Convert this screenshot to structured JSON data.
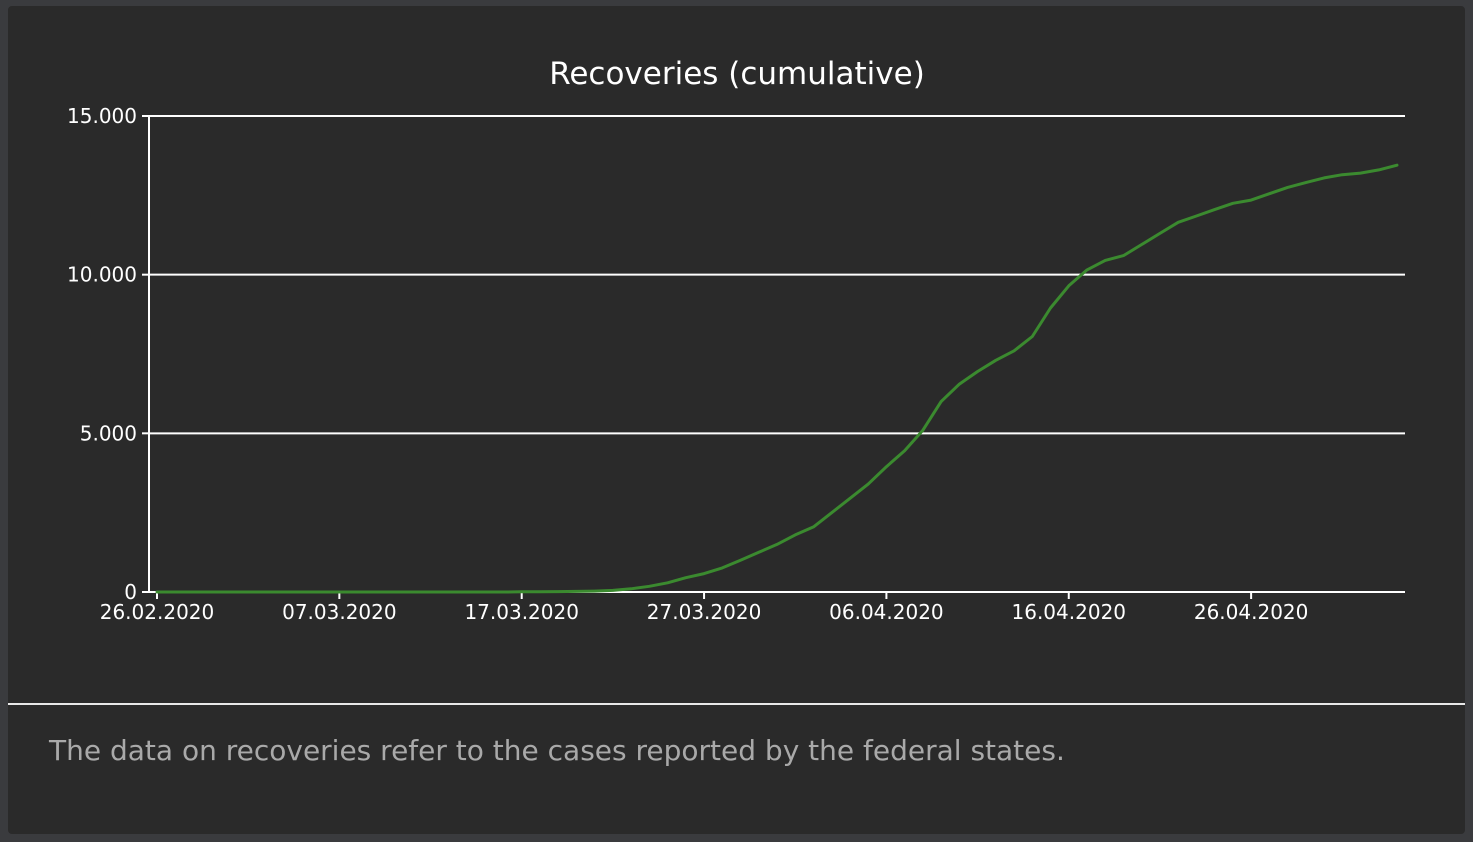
{
  "colors": {
    "page_bg": "#3a3b3e",
    "card_bg": "#2a2a2a",
    "axis": "#ffffff",
    "series_line": "#3b8a2f",
    "footnote_text": "#a9a9a9"
  },
  "footnote": "The data on recoveries refer to the cases reported by the federal states.",
  "chart_data": {
    "type": "line",
    "title": "Recoveries (cumulative)",
    "xlabel": "",
    "ylabel": "",
    "ylim": [
      0,
      15000
    ],
    "grid": true,
    "legend": "none",
    "yticks": [
      {
        "value": 0,
        "label": "0"
      },
      {
        "value": 5000,
        "label": "5.000"
      },
      {
        "value": 10000,
        "label": "10.000"
      },
      {
        "value": 15000,
        "label": "15.000"
      }
    ],
    "xlim": [
      0,
      68
    ],
    "xticks": [
      {
        "value": 0,
        "label": "26.02.2020"
      },
      {
        "value": 10,
        "label": "07.03.2020"
      },
      {
        "value": 20,
        "label": "17.03.2020"
      },
      {
        "value": 30,
        "label": "27.03.2020"
      },
      {
        "value": 40,
        "label": "06.04.2020"
      },
      {
        "value": 50,
        "label": "16.04.2020"
      },
      {
        "value": 60,
        "label": "26.04.2020"
      }
    ],
    "series": [
      {
        "name": "Recoveries",
        "x": [
          0,
          1,
          2,
          3,
          4,
          5,
          6,
          7,
          8,
          9,
          10,
          11,
          12,
          13,
          14,
          15,
          16,
          17,
          18,
          19,
          20,
          21,
          22,
          23,
          24,
          25,
          26,
          27,
          28,
          29,
          30,
          31,
          32,
          33,
          34,
          35,
          36,
          37,
          38,
          39,
          40,
          41,
          42,
          43,
          44,
          45,
          46,
          47,
          48,
          49,
          50,
          51,
          52,
          53,
          54,
          55,
          56,
          57,
          58,
          59,
          60,
          61,
          62,
          63,
          64,
          65,
          66,
          67,
          68
        ],
        "values": [
          0,
          0,
          0,
          0,
          0,
          0,
          0,
          0,
          0,
          0,
          0,
          0,
          0,
          0,
          0,
          0,
          0,
          0,
          0,
          0,
          5,
          8,
          12,
          18,
          28,
          50,
          100,
          180,
          290,
          450,
          580,
          760,
          1000,
          1250,
          1500,
          1800,
          2050,
          2500,
          2950,
          3400,
          3950,
          4450,
          5100,
          6000,
          6550,
          6950,
          7300,
          7600,
          8050,
          8950,
          9650,
          10150,
          10450,
          10600,
          10950,
          11300,
          11650,
          11850,
          12050,
          12250,
          12350,
          12550,
          12750,
          12900,
          13050,
          13150,
          13200,
          13300,
          13450
        ]
      }
    ]
  }
}
